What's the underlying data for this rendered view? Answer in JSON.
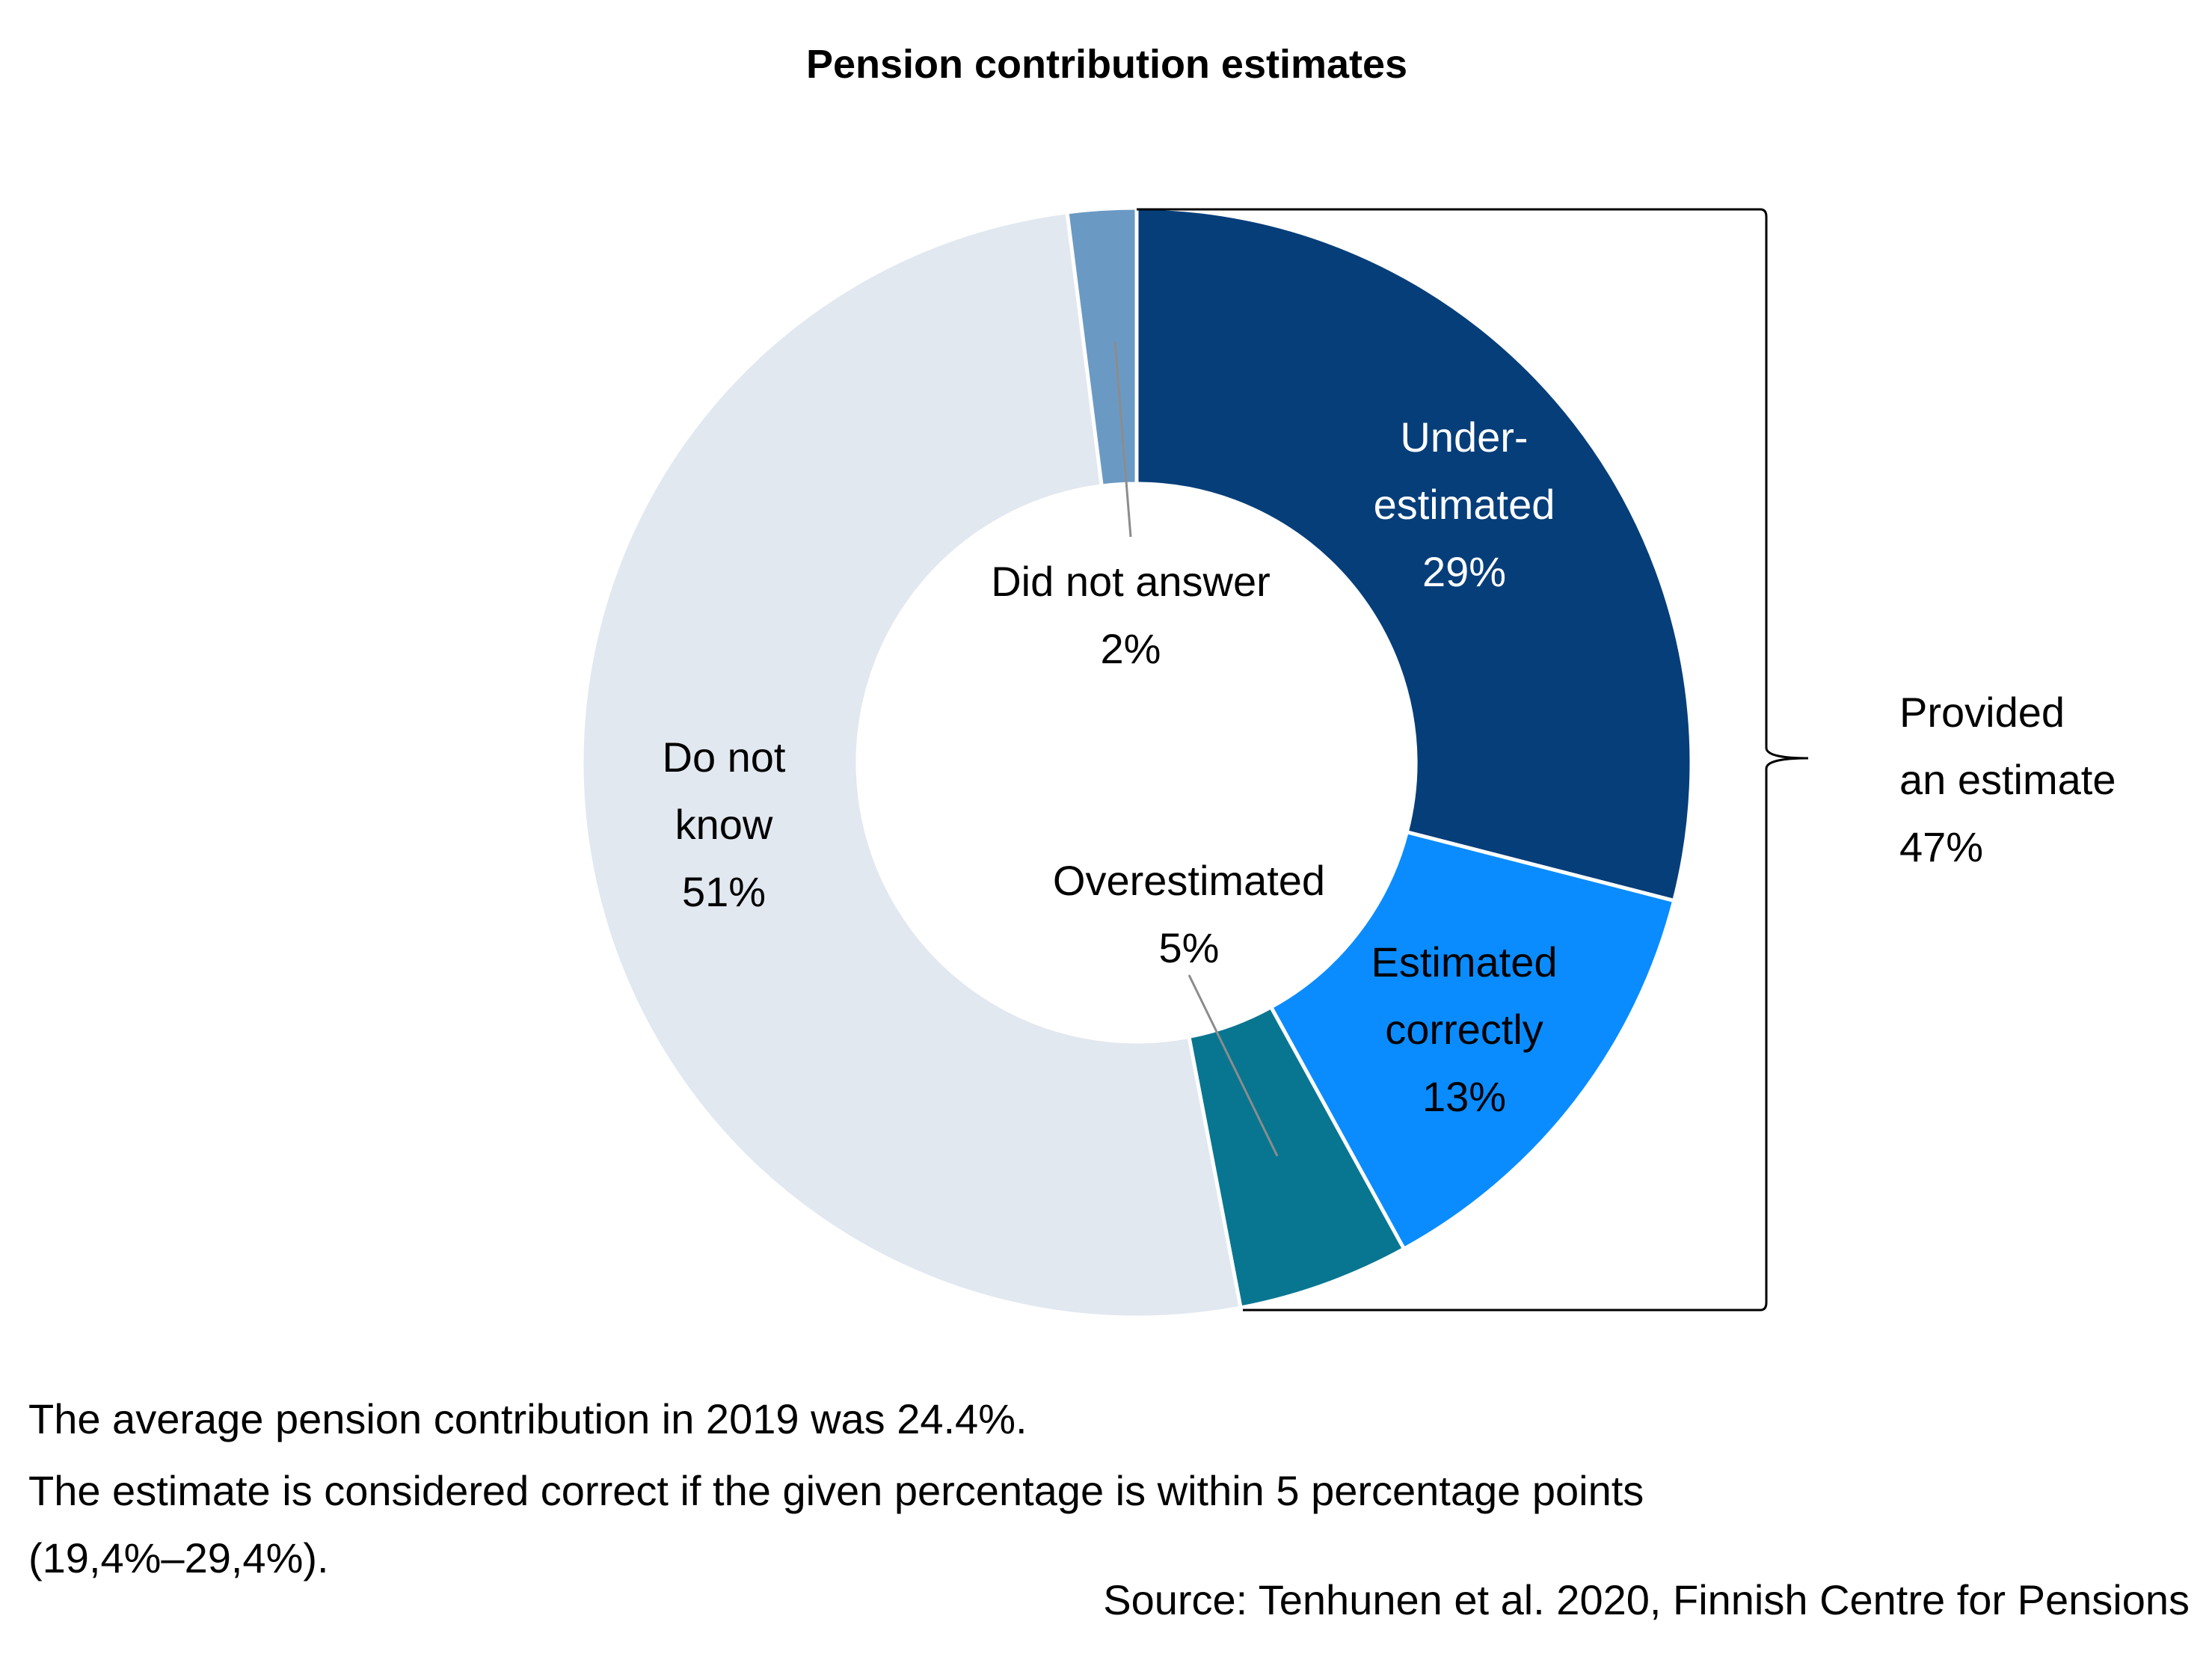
{
  "chart_data": {
    "type": "pie",
    "variant": "donut",
    "title": "Pension contribution estimates",
    "slices": [
      {
        "label_lines": [
          "Under-",
          "estimated",
          "29%"
        ],
        "value": 29,
        "color": "#063e7a",
        "label_color": "#ffffff"
      },
      {
        "label_lines": [
          "Estimated",
          "correctly",
          "13%"
        ],
        "value": 13,
        "color": "#0a8cff",
        "label_color": "#000000"
      },
      {
        "label_lines": [
          "Overestimated",
          "5%"
        ],
        "value": 5,
        "color": "#087691",
        "label_color": "#000000"
      },
      {
        "label_lines": [
          "Do not",
          "know",
          "51%"
        ],
        "value": 51,
        "color": "#e2e8f0",
        "label_color": "#000000"
      },
      {
        "label_lines": [
          "Did not answer",
          "2%"
        ],
        "value": 2,
        "color": "#6a9ac4",
        "label_color": "#000000"
      }
    ],
    "bracket": {
      "label_lines": [
        "Provided",
        "an estimate",
        "47%"
      ],
      "covers": [
        "Under-estimated",
        "Estimated correctly",
        "Overestimated"
      ],
      "value": 47
    }
  },
  "notes": {
    "line1": "The average pension contribution in 2019 was 24.4%.",
    "line2": "The estimate is considered correct if the given percentage is within 5 percentage points",
    "line3": "(19,4%–29,4%).",
    "source": "Source: Tenhunen et al. 2020, Finnish Centre for Pensions"
  }
}
